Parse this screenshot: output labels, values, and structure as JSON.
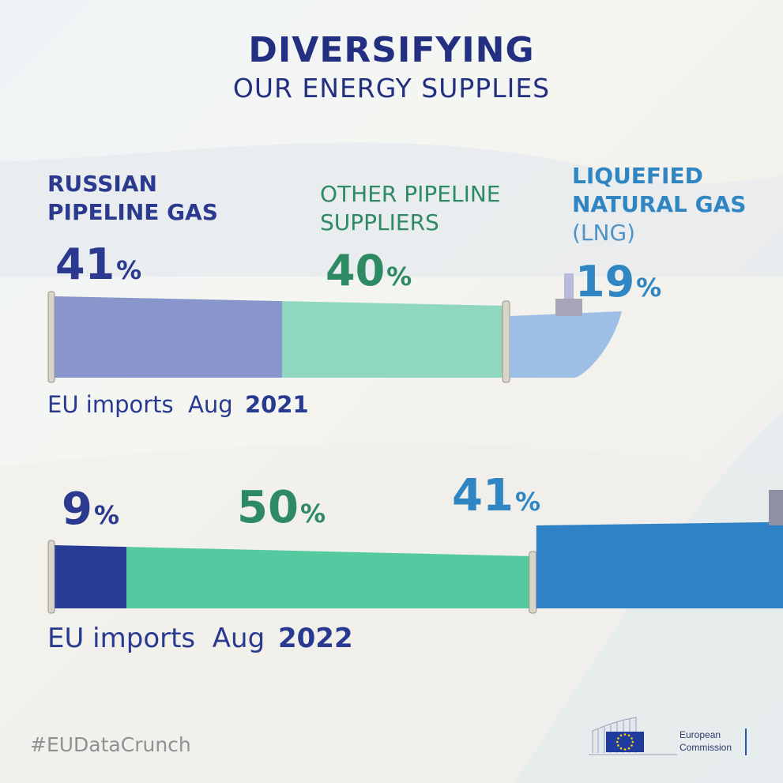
{
  "title": "DIVERSIFYING",
  "subtitle": "OUR ENERGY SUPPLIES",
  "legend": {
    "russian": [
      "RUSSIAN",
      "PIPELINE GAS"
    ],
    "other": [
      "OTHER PIPELINE",
      "SUPPLIERS"
    ],
    "lng": [
      "LIQUEFIED",
      "NATURAL GAS"
    ],
    "lng_abbr": "(LNG)"
  },
  "colors": {
    "russian_2021": "#8896cc",
    "russian_2022": "#283c95",
    "other_2021": "#8fd8bf",
    "other_2022": "#55c9a0",
    "lng_2021": "#9dbfe6",
    "lng_2022": "#2f82c6",
    "label_russian": "#2b3a8e",
    "label_other": "#2e8a62",
    "label_lng": "#2f86c2"
  },
  "chart_data": {
    "type": "bar",
    "orientation": "horizontal-stacked",
    "unit": "%",
    "series": [
      {
        "name": "RUSSIAN PIPELINE GAS",
        "values": [
          41,
          9
        ]
      },
      {
        "name": "OTHER PIPELINE SUPPLIERS",
        "values": [
          40,
          50
        ]
      },
      {
        "name": "LIQUEFIED NATURAL GAS (LNG)",
        "values": [
          19,
          41
        ]
      }
    ],
    "categories": [
      "EU imports Aug 2021",
      "EU imports Aug 2022"
    ],
    "rows": [
      {
        "caption": "EU imports",
        "month": "Aug",
        "year": "2021"
      },
      {
        "caption": "EU imports",
        "month": "Aug",
        "year": "2022"
      }
    ]
  },
  "percent_sign": "%",
  "hashtag": "#EUDataCrunch",
  "logo": {
    "line1": "European",
    "line2": "Commission"
  }
}
